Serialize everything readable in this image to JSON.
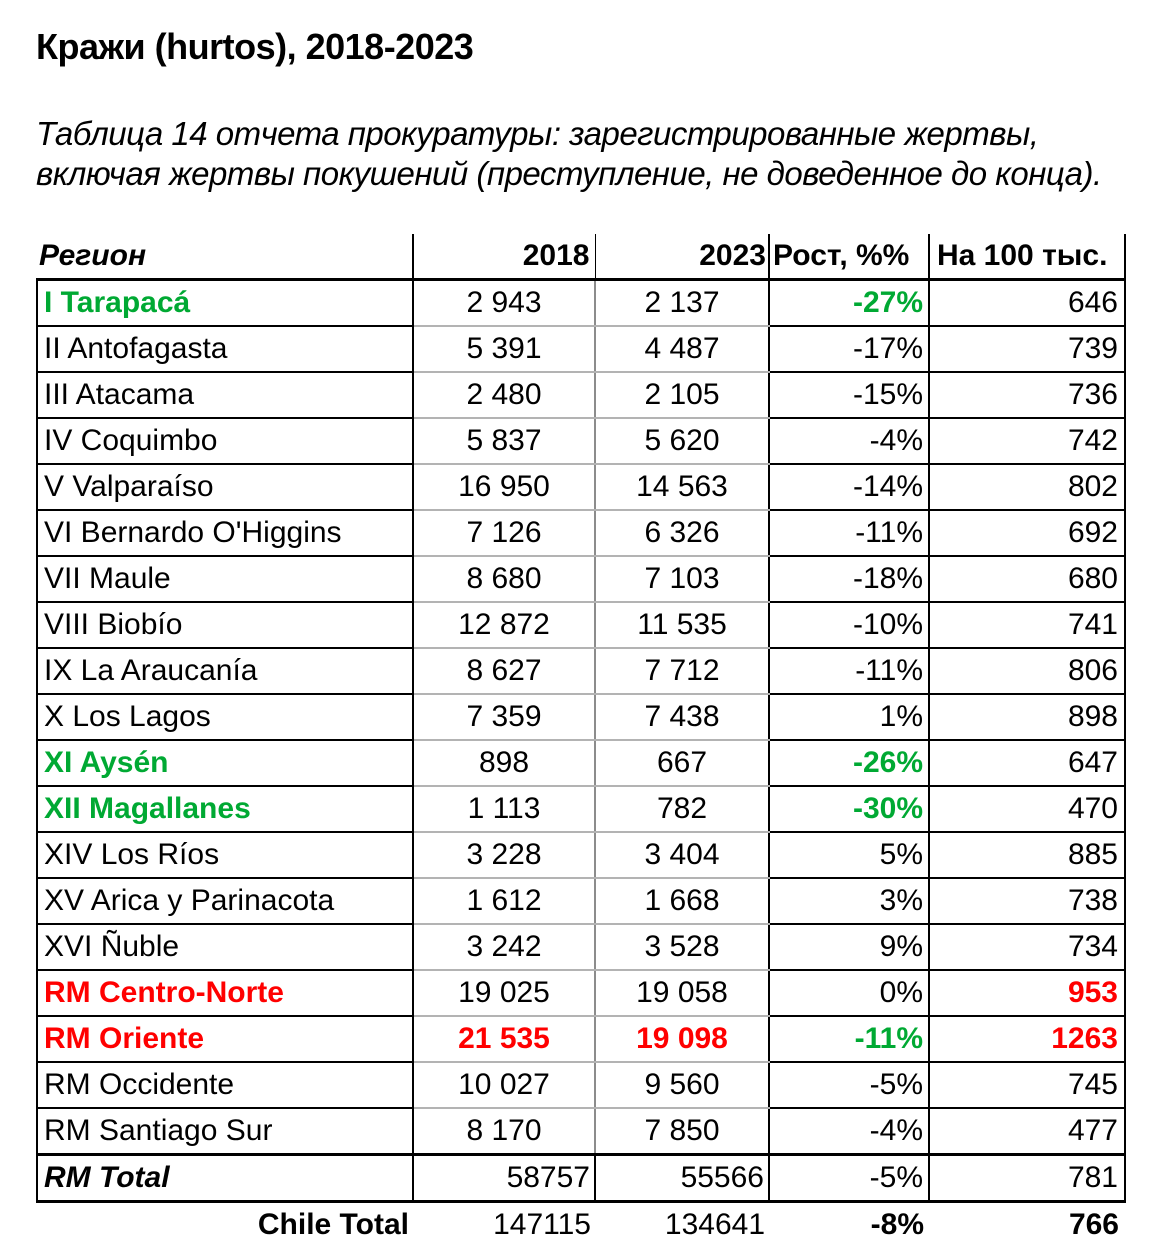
{
  "title": "Кражи (hurtos), 2018-2023",
  "subtitle": {
    "line1": "Таблица 14 отчета прокуратуры: зарегистрированные жертвы,",
    "line2": "включая жертвы покушений (преступление, не доведенное до конца)."
  },
  "colors": {
    "green": "#00A933",
    "red": "#FF0000",
    "grid_black": "#000000",
    "grid_gray": "#8C8C8C",
    "grid_gray_light": "#B3B3B3"
  },
  "table": {
    "headers": {
      "region": "Регион",
      "y2018": "2018",
      "y2023": "2023",
      "growth": "Рост, %%",
      "per100k": "На 100 тыс."
    },
    "rows": [
      {
        "region": "I Tarapacá",
        "y2018": "2 943",
        "y2023": "2 137",
        "growth": "-27%",
        "per100k": "646",
        "styles": {
          "region": "green",
          "growth": "green"
        }
      },
      {
        "region": "II Antofagasta",
        "y2018": "5 391",
        "y2023": "4 487",
        "growth": "-17%",
        "per100k": "739"
      },
      {
        "region": "III Atacama",
        "y2018": "2 480",
        "y2023": "2 105",
        "growth": "-15%",
        "per100k": "736"
      },
      {
        "region": "IV Coquimbo",
        "y2018": "5 837",
        "y2023": "5 620",
        "growth": "-4%",
        "per100k": "742"
      },
      {
        "region": "V Valparaíso",
        "y2018": "16 950",
        "y2023": "14 563",
        "growth": "-14%",
        "per100k": "802"
      },
      {
        "region": "VI Bernardo O'Higgins",
        "y2018": "7 126",
        "y2023": "6 326",
        "growth": "-11%",
        "per100k": "692"
      },
      {
        "region": "VII Maule",
        "y2018": "8 680",
        "y2023": "7 103",
        "growth": "-18%",
        "per100k": "680"
      },
      {
        "region": "VIII Biobío",
        "y2018": "12 872",
        "y2023": "11 535",
        "growth": "-10%",
        "per100k": "741"
      },
      {
        "region": "IX La Araucanía",
        "y2018": "8 627",
        "y2023": "7 712",
        "growth": "-11%",
        "per100k": "806"
      },
      {
        "region": "X Los Lagos",
        "y2018": "7 359",
        "y2023": "7 438",
        "growth": "1%",
        "per100k": "898"
      },
      {
        "region": "XI Aysén",
        "y2018": "898",
        "y2023": "667",
        "growth": "-26%",
        "per100k": "647",
        "styles": {
          "region": "green",
          "growth": "green"
        }
      },
      {
        "region": "XII Magallanes",
        "y2018": "1 113",
        "y2023": "782",
        "growth": "-30%",
        "per100k": "470",
        "styles": {
          "region": "green",
          "growth": "green"
        }
      },
      {
        "region": "XIV Los Ríos",
        "y2018": "3 228",
        "y2023": "3 404",
        "growth": "5%",
        "per100k": "885"
      },
      {
        "region": "XV Arica y Parinacota",
        "y2018": "1 612",
        "y2023": "1 668",
        "growth": "3%",
        "per100k": "738"
      },
      {
        "region": "XVI Ñuble",
        "y2018": "3 242",
        "y2023": "3 528",
        "growth": "9%",
        "per100k": "734"
      },
      {
        "region": "RM Centro-Norte",
        "y2018": "19 025",
        "y2023": "19 058",
        "growth": "0%",
        "per100k": "953",
        "styles": {
          "region": "red",
          "per100k": "red"
        }
      },
      {
        "region": "RM Oriente",
        "y2018": "21 535",
        "y2023": "19 098",
        "growth": "-11%",
        "per100k": "1263",
        "styles": {
          "region": "red",
          "y2018": "red",
          "y2023": "red",
          "growth": "green",
          "per100k": "red"
        }
      },
      {
        "region": "RM Occidente",
        "y2018": "10 027",
        "y2023": "9 560",
        "growth": "-5%",
        "per100k": "745"
      },
      {
        "region": "RM Santiago Sur",
        "y2018": "8 170",
        "y2023": "7 850",
        "growth": "-4%",
        "per100k": "477"
      },
      {
        "region": "RM Total",
        "y2018": "58757",
        "y2023": "55566",
        "growth": "-5%",
        "per100k": "781",
        "kind": "total",
        "styles": {
          "region": "bold-italic"
        }
      },
      {
        "region": "Chile Total",
        "y2018": "147115",
        "y2023": "134641",
        "growth": "-8%",
        "per100k": "766",
        "kind": "grand",
        "styles": {
          "region": "bold",
          "growth": "bold",
          "per100k": "bold"
        }
      }
    ]
  }
}
